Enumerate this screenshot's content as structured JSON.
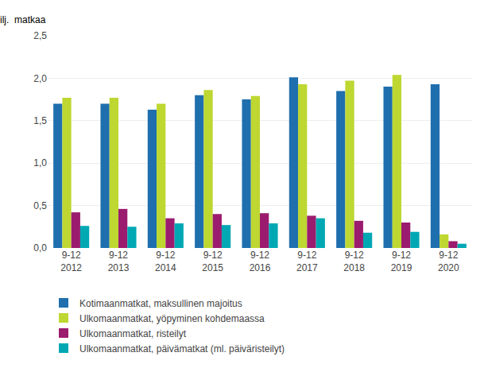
{
  "chart_data": {
    "type": "bar",
    "ylabel": "Milj.  matkaa",
    "categories": [
      "9-12\n2012",
      "9-12\n2013",
      "9-12\n2014",
      "9-12\n2015",
      "9-12\n2016",
      "9-12\n2017",
      "9-12\n2018",
      "9-12\n2019",
      "9-12\n2020"
    ],
    "series": [
      {
        "name": "Kotimaanmatkat, maksullinen majoitus",
        "color": "#1F6FAE",
        "values": [
          1.7,
          1.7,
          1.63,
          1.8,
          1.75,
          2.01,
          1.85,
          1.9,
          1.93
        ]
      },
      {
        "name": "Ulkomaanmatkat, yöpyminen kohdemaassa",
        "color": "#BED731",
        "values": [
          1.77,
          1.77,
          1.7,
          1.86,
          1.79,
          1.93,
          1.97,
          2.04,
          0.16
        ]
      },
      {
        "name": "Ulkomaanmatkat, risteilyt",
        "color": "#9B1C6E",
        "values": [
          0.42,
          0.46,
          0.35,
          0.4,
          0.41,
          0.38,
          0.32,
          0.3,
          0.08
        ]
      },
      {
        "name": "Ulkomaanmatkat, päivämatkat (ml. päiväristeilyt)",
        "color": "#00A8B4",
        "values": [
          0.26,
          0.25,
          0.29,
          0.27,
          0.29,
          0.35,
          0.18,
          0.19,
          0.05
        ]
      }
    ],
    "ylim": [
      0,
      2.5
    ],
    "yticks": [
      {
        "value": 0.0,
        "label": "0,0"
      },
      {
        "value": 0.5,
        "label": "0,5"
      },
      {
        "value": 1.0,
        "label": "1,0"
      },
      {
        "value": 1.5,
        "label": "1,5"
      },
      {
        "value": 2.0,
        "label": "2,0"
      },
      {
        "value": 2.5,
        "label": "2,5"
      }
    ],
    "grid": true,
    "legend": "lower left"
  }
}
